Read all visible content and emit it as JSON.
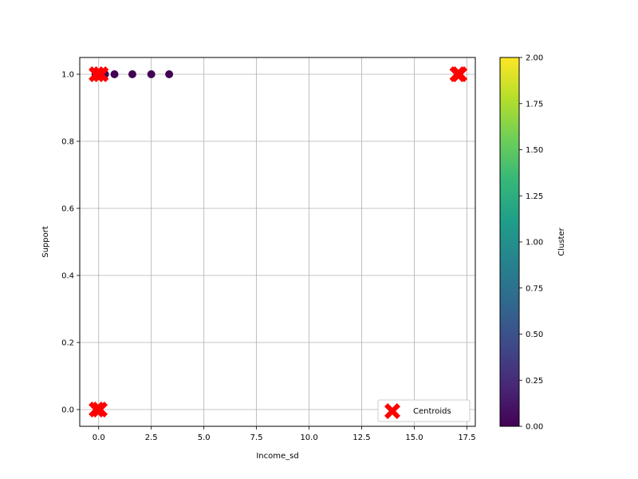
{
  "chart_data": {
    "type": "scatter",
    "title": "",
    "xlabel": "Income_sd",
    "ylabel": "Support",
    "xlim": [
      -0.9,
      17.9
    ],
    "ylim": [
      -0.05,
      1.05
    ],
    "xticks": [
      0.0,
      2.5,
      5.0,
      7.5,
      10.0,
      12.5,
      15.0,
      17.5
    ],
    "xtick_labels": [
      "0.0",
      "2.5",
      "5.0",
      "7.5",
      "10.0",
      "12.5",
      "15.0",
      "17.5"
    ],
    "yticks": [
      0.0,
      0.2,
      0.4,
      0.6,
      0.8,
      1.0
    ],
    "ytick_labels": [
      "0.0",
      "0.2",
      "0.4",
      "0.6",
      "0.8",
      "1.0"
    ],
    "grid": true,
    "points": [
      {
        "x": -0.15,
        "y": 1.0,
        "cluster": 0
      },
      {
        "x": 0.05,
        "y": 1.0,
        "cluster": 0
      },
      {
        "x": 0.3,
        "y": 1.0,
        "cluster": 0
      },
      {
        "x": 0.75,
        "y": 1.0,
        "cluster": 0
      },
      {
        "x": 1.6,
        "y": 1.0,
        "cluster": 0
      },
      {
        "x": 2.5,
        "y": 1.0,
        "cluster": 0
      },
      {
        "x": 3.35,
        "y": 1.0,
        "cluster": 0
      }
    ],
    "centroids": [
      {
        "x": -0.1,
        "y": 1.0
      },
      {
        "x": 0.1,
        "y": 1.0
      },
      {
        "x": -0.1,
        "y": 0.0
      },
      {
        "x": 0.05,
        "y": 0.0
      },
      {
        "x": 17.05,
        "y": 1.0
      },
      {
        "x": 17.15,
        "y": 1.0
      }
    ],
    "centroid_color": "#ff0000",
    "legend": {
      "entries": [
        "Centroids"
      ],
      "placement": "lower-right"
    },
    "colorbar": {
      "label": "Cluster",
      "range": [
        0.0,
        2.0
      ],
      "ticks": [
        0.0,
        0.25,
        0.5,
        0.75,
        1.0,
        1.25,
        1.5,
        1.75,
        2.0
      ],
      "tick_labels": [
        "0.00",
        "0.25",
        "0.50",
        "0.75",
        "1.00",
        "1.25",
        "1.50",
        "1.75",
        "2.00"
      ],
      "colormap": "viridis",
      "stops": [
        "#440154",
        "#482878",
        "#3e4a89",
        "#31688e",
        "#26828e",
        "#1f9e89",
        "#35b779",
        "#6ece58",
        "#b5de2b",
        "#fde725"
      ]
    }
  }
}
